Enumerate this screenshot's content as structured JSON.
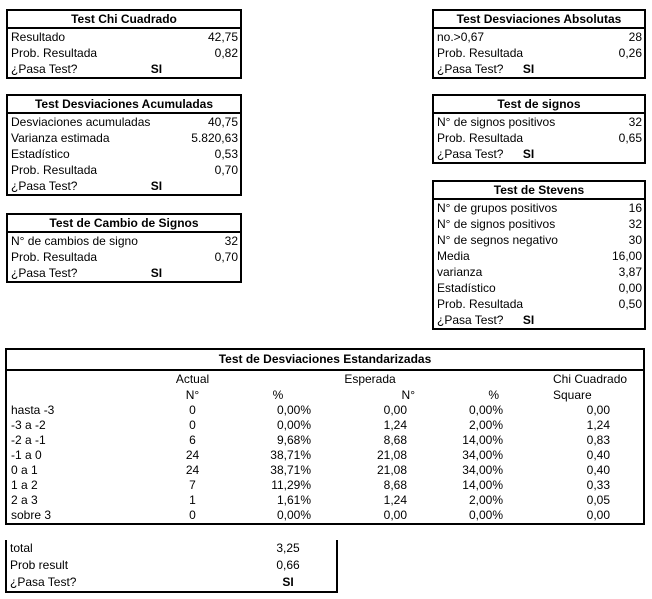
{
  "panels": [
    {
      "id": "test-chi-cuadrado",
      "title": "Test Chi Cuadrado",
      "rows": [
        {
          "label": "Resultado",
          "value": "42,75"
        },
        {
          "label": "Prob. Resultada",
          "value": "0,82"
        }
      ],
      "pass": {
        "label": "¿Pasa Test?",
        "value": "SI"
      }
    },
    {
      "id": "test-desviaciones-absolutas",
      "title": "Test Desviaciones Absolutas",
      "rows": [
        {
          "label": "no.>0,67",
          "value": "28"
        },
        {
          "label": "Prob. Resultada",
          "value": "0,26"
        }
      ],
      "pass": {
        "label": "¿Pasa Test?",
        "value": "SI"
      }
    },
    {
      "id": "test-desviaciones-acumuladas",
      "title": "Test Desviaciones Acumuladas",
      "rows": [
        {
          "label": "Desviaciones acumuladas",
          "value": "40,75"
        },
        {
          "label": "Varianza estimada",
          "value": "5.820,63"
        },
        {
          "label": "Estadístico",
          "value": "0,53"
        },
        {
          "label": "Prob. Resultada",
          "value": "0,70"
        }
      ],
      "pass": {
        "label": "¿Pasa Test?",
        "value": "SI"
      }
    },
    {
      "id": "test-de-signos",
      "title": "Test de signos",
      "rows": [
        {
          "label": "N° de signos positivos",
          "value": "32"
        },
        {
          "label": "Prob. Resultada",
          "value": "0,65"
        }
      ],
      "pass": {
        "label": "¿Pasa Test?",
        "value": "SI"
      }
    },
    {
      "id": "test-de-cambio-de-signos",
      "title": "Test de Cambio de Signos",
      "rows": [
        {
          "label": "N° de cambios de signo",
          "value": "32"
        },
        {
          "label": "Prob. Resultada",
          "value": "0,70"
        }
      ],
      "pass": {
        "label": "¿Pasa Test?",
        "value": "SI"
      }
    },
    {
      "id": "test-de-stevens",
      "title": "Test de Stevens",
      "rows": [
        {
          "label": "N° de grupos positivos",
          "value": "16"
        },
        {
          "label": "N° de signos positivos",
          "value": "32"
        },
        {
          "label": "N° de segnos negativo",
          "value": "30"
        },
        {
          "label": "Media",
          "value": "16,00"
        },
        {
          "label": "varianza",
          "value": "3,87"
        },
        {
          "label": "Estadístico",
          "value": "0,00"
        },
        {
          "label": "Prob. Resultada",
          "value": "0,50"
        }
      ],
      "pass": {
        "label": "¿Pasa Test?",
        "value": "SI"
      }
    }
  ],
  "stdev_table": {
    "title": "Test de Desviaciones Estandarizadas",
    "group_headers": {
      "actual": "Actual",
      "esperada": "Esperada",
      "chi": "Chi Cuadrado"
    },
    "col_headers": {
      "actual_n": "N°",
      "actual_pct": "%",
      "esp_n": "N°",
      "esp_pct": "%",
      "chi": "Square"
    },
    "rows": [
      {
        "label": "hasta -3",
        "actual_n": "0",
        "actual_pct": "0,00%",
        "esp_n": "0,00",
        "esp_pct": "0,00%",
        "chi": "0,00"
      },
      {
        "label": "-3 a -2",
        "actual_n": "0",
        "actual_pct": "0,00%",
        "esp_n": "1,24",
        "esp_pct": "2,00%",
        "chi": "1,24"
      },
      {
        "label": "-2 a -1",
        "actual_n": "6",
        "actual_pct": "9,68%",
        "esp_n": "8,68",
        "esp_pct": "14,00%",
        "chi": "0,83"
      },
      {
        "label": "-1 a 0",
        "actual_n": "24",
        "actual_pct": "38,71%",
        "esp_n": "21,08",
        "esp_pct": "34,00%",
        "chi": "0,40"
      },
      {
        "label": "0 a 1",
        "actual_n": "24",
        "actual_pct": "38,71%",
        "esp_n": "21,08",
        "esp_pct": "34,00%",
        "chi": "0,40"
      },
      {
        "label": "1 a 2",
        "actual_n": "7",
        "actual_pct": "11,29%",
        "esp_n": "8,68",
        "esp_pct": "14,00%",
        "chi": "0,33"
      },
      {
        "label": "2 a 3",
        "actual_n": "1",
        "actual_pct": "1,61%",
        "esp_n": "1,24",
        "esp_pct": "2,00%",
        "chi": "0,05"
      },
      {
        "label": "sobre 3",
        "actual_n": "0",
        "actual_pct": "0,00%",
        "esp_n": "0,00",
        "esp_pct": "0,00%",
        "chi": "0,00"
      }
    ],
    "summary": {
      "total_label": "total",
      "total_value": "3,25",
      "prob_label": "Prob result",
      "prob_value": "0,66",
      "pass_label": "¿Pasa Test?",
      "pass_value": "SI"
    }
  },
  "colors": {
    "border": "#000000",
    "background": "#ffffff",
    "text": "#000000"
  }
}
